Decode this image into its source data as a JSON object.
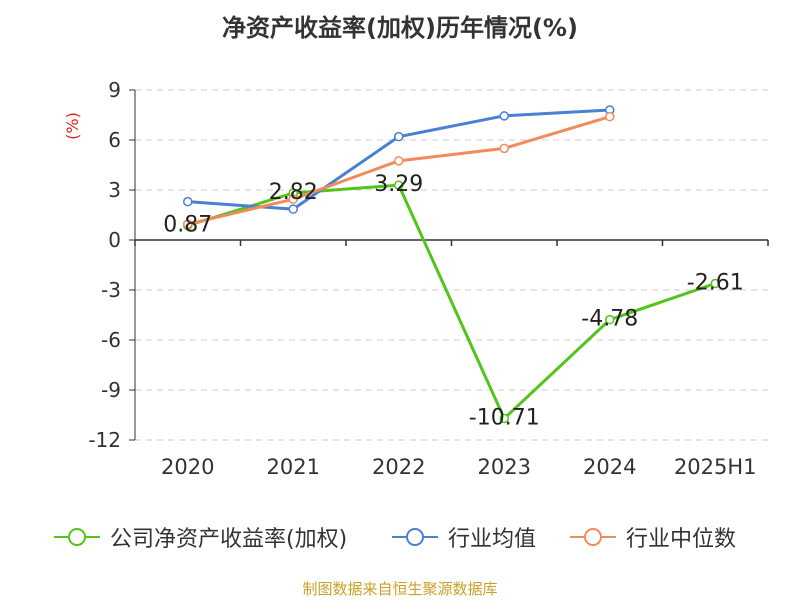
{
  "title": "净资产收益率(加权)历年情况(%)",
  "source": "制图数据来自恒生聚源数据库",
  "chart_data": {
    "type": "line",
    "title": "净资产收益率(加权)历年情况(%)",
    "ylabel": "(%)",
    "xlabel": "",
    "categories": [
      "2020",
      "2021",
      "2022",
      "2023",
      "2024",
      "2025H1"
    ],
    "ylim": [
      -12,
      9
    ],
    "yticks": [
      "9",
      "6",
      "3",
      "0",
      "-3",
      "-6",
      "-9",
      "-12"
    ],
    "grid": true,
    "legend_position": "bottom",
    "series": [
      {
        "name": "公司净资产收益率(加权)",
        "color": "#52c41a",
        "values": [
          0.87,
          2.82,
          3.29,
          -10.71,
          -4.78,
          -2.61
        ],
        "labels": [
          "0.87",
          "2.82",
          "3.29",
          "-10.71",
          "-4.78",
          "-2.61"
        ]
      },
      {
        "name": "行业均值",
        "color": "#4a7fd6",
        "values": [
          2.3,
          1.85,
          6.2,
          7.45,
          7.8,
          null
        ]
      },
      {
        "name": "行业中位数",
        "color": "#f28a5a",
        "values": [
          0.95,
          2.45,
          4.75,
          5.5,
          7.4,
          null
        ]
      }
    ]
  }
}
